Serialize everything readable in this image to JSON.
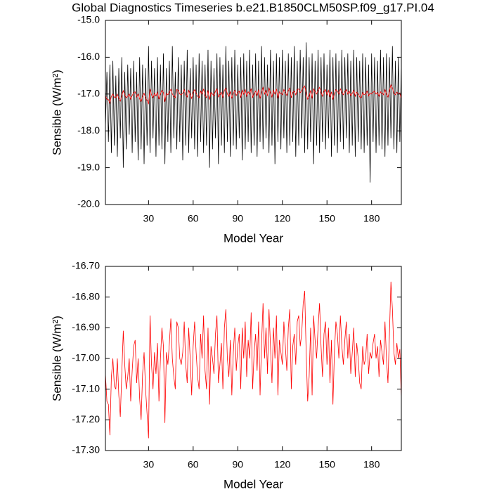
{
  "chart_data": [
    {
      "type": "line",
      "title": "Global Diagnostics Timeseries b.e21.B1850CLM50SP.f09_g17.PI.04",
      "ylabel": "Sensible (W/m²)",
      "xlabel": "Model Year",
      "x": [
        1,
        2,
        3,
        4,
        5,
        6,
        7,
        8,
        9,
        10,
        11,
        12,
        13,
        14,
        15,
        16,
        17,
        18,
        19,
        20,
        21,
        22,
        23,
        24,
        25,
        26,
        27,
        28,
        29,
        30,
        31,
        32,
        33,
        34,
        35,
        36,
        37,
        38,
        39,
        40,
        41,
        42,
        43,
        44,
        45,
        46,
        47,
        48,
        49,
        50,
        51,
        52,
        53,
        54,
        55,
        56,
        57,
        58,
        59,
        60,
        61,
        62,
        63,
        64,
        65,
        66,
        67,
        68,
        69,
        70,
        71,
        72,
        73,
        74,
        75,
        76,
        77,
        78,
        79,
        80,
        81,
        82,
        83,
        84,
        85,
        86,
        87,
        88,
        89,
        90,
        91,
        92,
        93,
        94,
        95,
        96,
        97,
        98,
        99,
        100,
        101,
        102,
        103,
        104,
        105,
        106,
        107,
        108,
        109,
        110,
        111,
        112,
        113,
        114,
        115,
        116,
        117,
        118,
        119,
        120,
        121,
        122,
        123,
        124,
        125,
        126,
        127,
        128,
        129,
        130,
        131,
        132,
        133,
        134,
        135,
        136,
        137,
        138,
        139,
        140,
        141,
        142,
        143,
        144,
        145,
        146,
        147,
        148,
        149,
        150,
        151,
        152,
        153,
        154,
        155,
        156,
        157,
        158,
        159,
        160,
        161,
        162,
        163,
        164,
        165,
        166,
        167,
        168,
        169,
        170,
        171,
        172,
        173,
        174,
        175,
        176,
        177,
        178,
        179,
        180,
        181,
        182,
        183,
        184,
        185,
        186,
        187,
        188,
        189,
        190,
        191,
        192,
        193,
        194,
        195,
        196,
        197,
        198,
        199,
        200
      ],
      "xlim": [
        1,
        200
      ],
      "xticks": [
        30,
        60,
        90,
        120,
        150,
        180
      ],
      "ylim": [
        -20,
        -15
      ],
      "yticks": [
        {
          "value": -20,
          "label": "-20.0"
        },
        {
          "value": -19,
          "label": "-19.0"
        },
        {
          "value": -18,
          "label": "-18.0"
        },
        {
          "value": -17,
          "label": "-17.0"
        },
        {
          "value": -16,
          "label": "-16.0"
        },
        {
          "value": -15,
          "label": "-15.0"
        }
      ],
      "series": [
        {
          "color": "#000000",
          "values": [
            -17.9,
            -16.4,
            -18.3,
            -16.2,
            -18.6,
            -16.1,
            -18.4,
            -16.5,
            -18.7,
            -16.3,
            -18.2,
            -16.0,
            -19.0,
            -16.4,
            -18.5,
            -16.2,
            -18.1,
            -16.3,
            -18.6,
            -16.1,
            -18.3,
            -16.4,
            -18.8,
            -16.0,
            -18.5,
            -16.2,
            -18.9,
            -16.3,
            -18.4,
            -15.7,
            -18.6,
            -16.1,
            -18.2,
            -16.3,
            -18.7,
            -16.0,
            -18.4,
            -16.2,
            -18.5,
            -15.9,
            -18.9,
            -16.3,
            -18.3,
            -16.1,
            -18.6,
            -15.7,
            -18.2,
            -16.4,
            -18.5,
            -16.0,
            -18.3,
            -16.2,
            -18.8,
            -16.1,
            -18.4,
            -15.8,
            -18.6,
            -16.3,
            -18.2,
            -16.0,
            -18.5,
            -16.2,
            -18.7,
            -15.9,
            -18.3,
            -16.1,
            -18.6,
            -16.2,
            -18.4,
            -15.8,
            -19.0,
            -16.1,
            -18.5,
            -16.3,
            -18.2,
            -15.9,
            -18.9,
            -16.0,
            -18.4,
            -16.2,
            -18.6,
            -15.7,
            -18.3,
            -16.1,
            -18.7,
            -16.0,
            -18.4,
            -15.8,
            -18.5,
            -16.2,
            -18.2,
            -16.0,
            -18.8,
            -15.9,
            -18.5,
            -16.1,
            -18.3,
            -15.8,
            -18.6,
            -16.2,
            -18.4,
            -15.9,
            -18.7,
            -16.1,
            -18.3,
            -15.7,
            -18.5,
            -16.0,
            -18.2,
            -16.2,
            -18.6,
            -15.8,
            -18.4,
            -16.1,
            -18.9,
            -15.9,
            -18.3,
            -16.0,
            -18.5,
            -15.8,
            -18.2,
            -16.1,
            -18.6,
            -15.9,
            -18.4,
            -16.0,
            -18.3,
            -15.7,
            -18.7,
            -16.1,
            -18.4,
            -15.8,
            -18.2,
            -16.0,
            -18.6,
            -15.6,
            -18.5,
            -16.0,
            -18.3,
            -15.9,
            -18.9,
            -16.1,
            -18.4,
            -15.8,
            -18.6,
            -16.0,
            -18.3,
            -15.9,
            -18.5,
            -16.2,
            -18.2,
            -15.8,
            -18.7,
            -16.0,
            -18.4,
            -15.9,
            -18.6,
            -16.1,
            -18.3,
            -15.8,
            -18.5,
            -16.0,
            -18.2,
            -15.9,
            -18.6,
            -16.1,
            -18.4,
            -15.8,
            -18.7,
            -16.0,
            -18.3,
            -16.1,
            -18.5,
            -15.9,
            -18.6,
            -16.0,
            -18.4,
            -16.2,
            -19.4,
            -15.9,
            -18.3,
            -16.0,
            -18.6,
            -16.1,
            -18.4,
            -15.8,
            -18.5,
            -16.0,
            -18.7,
            -15.9,
            -18.4,
            -16.0,
            -18.2,
            -15.7,
            -18.5,
            -16.1,
            -18.6,
            -16.0,
            -18.3,
            -16.2
          ]
        },
        {
          "color": "#ff0000",
          "values": [
            -17.05,
            -17.14,
            -17.15,
            -17.25,
            -17.06,
            -17.0,
            -17.09,
            -17.1,
            -17.0,
            -17.12,
            -17.19,
            -17.05,
            -16.91,
            -17.02,
            -17.1,
            -17.06,
            -17.0,
            -17.14,
            -17.04,
            -16.96,
            -16.94,
            -17.08,
            -17.0,
            -17.13,
            -17.2,
            -17.05,
            -16.98,
            -17.1,
            -17.18,
            -17.26,
            -16.86,
            -17.02,
            -17.1,
            -16.98,
            -17.05,
            -16.95,
            -17.14,
            -17.0,
            -16.9,
            -16.96,
            -17.21,
            -16.98,
            -17.02,
            -16.95,
            -16.87,
            -17.0,
            -17.06,
            -17.1,
            -16.88,
            -16.9,
            -17.0,
            -17.02,
            -16.98,
            -16.88,
            -17.02,
            -17.08,
            -16.9,
            -17.0,
            -17.12,
            -16.96,
            -16.88,
            -16.98,
            -17.06,
            -17.1,
            -16.92,
            -17.0,
            -16.86,
            -17.04,
            -17.1,
            -16.9,
            -17.15,
            -16.96,
            -17.0,
            -17.05,
            -16.92,
            -16.86,
            -17.08,
            -17.02,
            -16.95,
            -17.1,
            -16.9,
            -16.84,
            -17.0,
            -17.06,
            -16.94,
            -17.12,
            -16.98,
            -16.9,
            -17.04,
            -16.96,
            -16.92,
            -17.1,
            -16.9,
            -17.0,
            -16.88,
            -17.06,
            -16.94,
            -17.0,
            -16.85,
            -17.1,
            -16.98,
            -16.92,
            -17.04,
            -16.88,
            -17.12,
            -16.95,
            -16.82,
            -17.0,
            -16.9,
            -17.05,
            -16.84,
            -16.96,
            -17.08,
            -16.9,
            -17.0,
            -16.86,
            -17.12,
            -16.94,
            -16.98,
            -17.02,
            -16.88,
            -16.96,
            -17.04,
            -16.9,
            -16.84,
            -17.1,
            -16.96,
            -16.92,
            -17.02,
            -16.88,
            -16.86,
            -16.96,
            -16.92,
            -16.82,
            -16.78,
            -16.98,
            -17.14,
            -17.06,
            -16.9,
            -17.12,
            -16.86,
            -16.94,
            -17.0,
            -16.9,
            -16.82,
            -16.96,
            -17.06,
            -16.92,
            -16.88,
            -17.02,
            -16.9,
            -17.08,
            -16.94,
            -17.15,
            -16.98,
            -16.88,
            -16.92,
            -17.0,
            -16.86,
            -16.96,
            -17.02,
            -16.94,
            -16.88,
            -17.0,
            -16.92,
            -17.05,
            -16.98,
            -16.9,
            -17.06,
            -16.95,
            -17.0,
            -17.08,
            -17.1,
            -16.96,
            -17.02,
            -17.0,
            -16.92,
            -17.05,
            -16.98,
            -17.0,
            -16.95,
            -16.92,
            -17.0,
            -16.96,
            -17.06,
            -16.94,
            -16.98,
            -17.02,
            -16.88,
            -17.0,
            -17.08,
            -16.92,
            -16.75,
            -16.84,
            -16.98,
            -17.02,
            -16.95,
            -17.0,
            -16.97,
            -17.13
          ]
        }
      ]
    },
    {
      "type": "line",
      "ylabel": "Sensible (W/m²)",
      "xlabel": "Model Year",
      "x": [
        1,
        2,
        3,
        4,
        5,
        6,
        7,
        8,
        9,
        10,
        11,
        12,
        13,
        14,
        15,
        16,
        17,
        18,
        19,
        20,
        21,
        22,
        23,
        24,
        25,
        26,
        27,
        28,
        29,
        30,
        31,
        32,
        33,
        34,
        35,
        36,
        37,
        38,
        39,
        40,
        41,
        42,
        43,
        44,
        45,
        46,
        47,
        48,
        49,
        50,
        51,
        52,
        53,
        54,
        55,
        56,
        57,
        58,
        59,
        60,
        61,
        62,
        63,
        64,
        65,
        66,
        67,
        68,
        69,
        70,
        71,
        72,
        73,
        74,
        75,
        76,
        77,
        78,
        79,
        80,
        81,
        82,
        83,
        84,
        85,
        86,
        87,
        88,
        89,
        90,
        91,
        92,
        93,
        94,
        95,
        96,
        97,
        98,
        99,
        100,
        101,
        102,
        103,
        104,
        105,
        106,
        107,
        108,
        109,
        110,
        111,
        112,
        113,
        114,
        115,
        116,
        117,
        118,
        119,
        120,
        121,
        122,
        123,
        124,
        125,
        126,
        127,
        128,
        129,
        130,
        131,
        132,
        133,
        134,
        135,
        136,
        137,
        138,
        139,
        140,
        141,
        142,
        143,
        144,
        145,
        146,
        147,
        148,
        149,
        150,
        151,
        152,
        153,
        154,
        155,
        156,
        157,
        158,
        159,
        160,
        161,
        162,
        163,
        164,
        165,
        166,
        167,
        168,
        169,
        170,
        171,
        172,
        173,
        174,
        175,
        176,
        177,
        178,
        179,
        180,
        181,
        182,
        183,
        184,
        185,
        186,
        187,
        188,
        189,
        190,
        191,
        192,
        193,
        194,
        195,
        196,
        197,
        198,
        199,
        200
      ],
      "xlim": [
        1,
        200
      ],
      "xticks": [
        30,
        60,
        90,
        120,
        150,
        180
      ],
      "ylim": [
        -17.3,
        -16.7
      ],
      "yticks": [
        {
          "value": -17.3,
          "label": "-17.30"
        },
        {
          "value": -17.2,
          "label": "-17.20"
        },
        {
          "value": -17.1,
          "label": "-17.10"
        },
        {
          "value": -17.0,
          "label": "-17.00"
        },
        {
          "value": -16.9,
          "label": "-16.90"
        },
        {
          "value": -16.8,
          "label": "-16.80"
        },
        {
          "value": -16.7,
          "label": "-16.70"
        }
      ],
      "series": [
        {
          "color": "#ff0000",
          "values": [
            -17.05,
            -17.14,
            -17.15,
            -17.25,
            -17.06,
            -17.0,
            -17.09,
            -17.1,
            -17.0,
            -17.12,
            -17.19,
            -17.05,
            -16.91,
            -17.02,
            -17.1,
            -17.06,
            -17.0,
            -17.14,
            -17.04,
            -16.96,
            -16.94,
            -17.08,
            -17.0,
            -17.13,
            -17.2,
            -17.05,
            -16.98,
            -17.1,
            -17.18,
            -17.26,
            -16.86,
            -17.02,
            -17.1,
            -16.98,
            -17.05,
            -16.95,
            -17.14,
            -17.0,
            -16.9,
            -16.96,
            -17.21,
            -16.98,
            -17.02,
            -16.95,
            -16.87,
            -17.0,
            -17.06,
            -17.1,
            -16.88,
            -16.9,
            -17.0,
            -17.02,
            -16.98,
            -16.88,
            -17.02,
            -17.08,
            -16.9,
            -17.0,
            -17.12,
            -16.96,
            -16.88,
            -16.98,
            -17.06,
            -17.1,
            -16.92,
            -17.0,
            -16.86,
            -17.04,
            -17.1,
            -16.9,
            -17.15,
            -16.96,
            -17.0,
            -17.05,
            -16.92,
            -16.86,
            -17.08,
            -17.02,
            -16.95,
            -17.1,
            -16.9,
            -16.84,
            -17.0,
            -17.06,
            -16.94,
            -17.12,
            -16.98,
            -16.9,
            -17.04,
            -16.96,
            -16.92,
            -17.1,
            -16.9,
            -17.0,
            -16.88,
            -17.06,
            -16.94,
            -17.0,
            -16.85,
            -17.1,
            -16.98,
            -16.92,
            -17.04,
            -16.88,
            -17.12,
            -16.95,
            -16.82,
            -17.0,
            -16.9,
            -17.05,
            -16.84,
            -16.96,
            -17.08,
            -16.9,
            -17.0,
            -16.86,
            -17.12,
            -16.94,
            -16.98,
            -17.02,
            -16.88,
            -16.96,
            -17.04,
            -16.9,
            -16.84,
            -17.1,
            -16.96,
            -16.92,
            -17.02,
            -16.88,
            -16.86,
            -16.96,
            -16.92,
            -16.82,
            -16.78,
            -16.98,
            -17.14,
            -17.06,
            -16.9,
            -17.12,
            -16.86,
            -16.94,
            -17.0,
            -16.9,
            -16.82,
            -16.96,
            -17.06,
            -16.92,
            -16.88,
            -17.02,
            -16.9,
            -17.08,
            -16.94,
            -17.15,
            -16.98,
            -16.88,
            -16.92,
            -17.0,
            -16.86,
            -16.96,
            -17.02,
            -16.94,
            -16.88,
            -17.0,
            -16.92,
            -17.05,
            -16.98,
            -16.9,
            -17.06,
            -16.95,
            -17.0,
            -17.08,
            -17.1,
            -16.96,
            -17.02,
            -17.0,
            -16.92,
            -17.05,
            -16.98,
            -17.0,
            -16.95,
            -16.92,
            -17.0,
            -16.96,
            -17.06,
            -16.94,
            -16.98,
            -17.02,
            -16.88,
            -17.0,
            -17.08,
            -16.92,
            -16.75,
            -16.84,
            -16.98,
            -17.02,
            -16.95,
            -17.0,
            -16.97,
            -17.13
          ]
        }
      ]
    }
  ]
}
